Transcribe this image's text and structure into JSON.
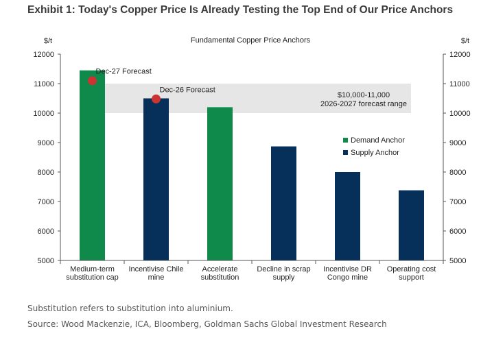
{
  "exhibit_title": "Exhibit 1: Today's Copper Price Is Already Testing the Top End of Our Price Anchors",
  "footnote": "Substitution refers to substitution into aluminium.",
  "source": "Source: Wood Mackenzie, ICA, Bloomberg, Goldman Sachs Global Investment Research",
  "chart_data": {
    "type": "bar",
    "title": "Fundamental Copper Price Anchors",
    "ylabel_left": "$/t",
    "ylabel_right": "$/t",
    "ylim": [
      5000,
      12000
    ],
    "yticks": [
      5000,
      6000,
      7000,
      8000,
      9000,
      10000,
      11000,
      12000
    ],
    "grid": false,
    "categories": [
      [
        "Medium-term",
        "substitution cap"
      ],
      [
        "Incentivise Chile",
        "mine"
      ],
      [
        "Accelerate",
        "substitution"
      ],
      [
        "Decline in scrap",
        "supply"
      ],
      [
        "Incentivise DR",
        "Congo mine"
      ],
      [
        "Operating cost",
        "support"
      ]
    ],
    "values": [
      11450,
      10500,
      10200,
      8870,
      8000,
      7380
    ],
    "bar_types": [
      "demand",
      "supply",
      "demand",
      "supply",
      "supply",
      "supply"
    ],
    "series": [
      {
        "name": "Demand Anchor",
        "key": "demand",
        "color": "#0f8a4a"
      },
      {
        "name": "Supply Anchor",
        "key": "supply",
        "color": "#062f5a"
      }
    ],
    "legend_position": "right",
    "forecast_range": {
      "low": 10000,
      "high": 11000,
      "label": [
        "$10,000-11,000",
        "2026-2027 forecast range"
      ],
      "color": "#e6e6e6"
    },
    "forecasts": [
      {
        "label": "Dec-27 Forecast",
        "category_index": 0,
        "value": 11100
      },
      {
        "label": "Dec-26 Forecast",
        "category_index": 1,
        "value": 10480
      }
    ],
    "forecast_marker_color": "#cc3333",
    "axis_color": "#555555"
  }
}
